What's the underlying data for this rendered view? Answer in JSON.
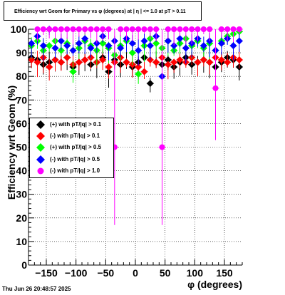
{
  "chart_data": {
    "type": "scatter",
    "title": "Efficiency wrt Geom for Primary vs φ (degrees) at | η | <= 1.0 at pT > 0.11",
    "xlabel": "φ (degrees)",
    "ylabel": "Efficiency wrt Geom (%)",
    "xlim": [
      -180,
      180
    ],
    "ylim": [
      0,
      100
    ],
    "x_ticks": [
      "−150",
      "−100",
      "−50",
      "0",
      "50",
      "100",
      "150"
    ],
    "x_tick_values": [
      -150,
      -100,
      -50,
      0,
      50,
      100,
      150
    ],
    "y_ticks": [
      "0",
      "10",
      "20",
      "30",
      "40",
      "50",
      "60",
      "70",
      "80",
      "90",
      "100"
    ],
    "y_tick_values": [
      0,
      10,
      20,
      30,
      40,
      50,
      60,
      70,
      80,
      90,
      100
    ],
    "grid": true,
    "legend_position": "middle-left",
    "series": [
      {
        "name": "(+) with pT/|q| > 0.1",
        "color": "#000000",
        "marker": "diamond",
        "x": [
          -175,
          -165,
          -155,
          -145,
          -135,
          -125,
          -115,
          -105,
          -95,
          -85,
          -75,
          -65,
          -55,
          -45,
          -35,
          -25,
          -15,
          -5,
          5,
          15,
          25,
          35,
          45,
          55,
          65,
          75,
          85,
          95,
          105,
          115,
          125,
          135,
          145,
          155,
          165,
          175
        ],
        "y": [
          88,
          87,
          85,
          86,
          87,
          86,
          88,
          84,
          86,
          87,
          85,
          86,
          88,
          82,
          87,
          85,
          86,
          84,
          86,
          88,
          77,
          86,
          85,
          87,
          84,
          86,
          88,
          85,
          86,
          87,
          86,
          84,
          86,
          88,
          87,
          84
        ]
      },
      {
        "name": "(-) with pT/|q| > 0.1",
        "color": "#ff0000",
        "marker": "diamond",
        "x": [
          -175,
          -165,
          -155,
          -145,
          -135,
          -125,
          -115,
          -105,
          -95,
          -85,
          -75,
          -65,
          -55,
          -45,
          -35,
          -25,
          -15,
          -5,
          5,
          15,
          25,
          35,
          45,
          55,
          65,
          75,
          85,
          95,
          105,
          115,
          125,
          135,
          145,
          155,
          165,
          175
        ],
        "y": [
          87,
          86,
          88,
          84,
          87,
          86,
          88,
          85,
          86,
          87,
          88,
          86,
          87,
          84,
          86,
          88,
          86,
          85,
          84,
          82,
          87,
          86,
          88,
          85,
          86,
          87,
          86,
          88,
          86,
          87,
          86,
          88,
          87,
          86,
          88,
          87
        ]
      },
      {
        "name": "(+) with pT/|q| > 0.5",
        "color": "#00ff00",
        "marker": "diamond",
        "x": [
          -175,
          -165,
          -155,
          -145,
          -135,
          -125,
          -115,
          -105,
          -95,
          -85,
          -75,
          -65,
          -55,
          -45,
          -35,
          -25,
          -15,
          -5,
          5,
          15,
          25,
          35,
          45,
          55,
          65,
          75,
          85,
          95,
          105,
          115,
          125,
          135,
          145,
          155,
          165,
          175
        ],
        "y": [
          93,
          95,
          91,
          93,
          95,
          91,
          94,
          82,
          92,
          95,
          93,
          91,
          94,
          92,
          89,
          93,
          95,
          90,
          81,
          93,
          96,
          94,
          92,
          95,
          91,
          94,
          96,
          93,
          95,
          92,
          94,
          91,
          95,
          97,
          98,
          99
        ]
      },
      {
        "name": "(-) with pT/|q| > 0.5",
        "color": "#0000ff",
        "marker": "diamond",
        "x": [
          -175,
          -165,
          -155,
          -145,
          -135,
          -125,
          -115,
          -105,
          -95,
          -85,
          -75,
          -65,
          -55,
          -45,
          -35,
          -25,
          -15,
          -5,
          5,
          15,
          25,
          35,
          45,
          55,
          65,
          75,
          85,
          95,
          105,
          115,
          125,
          135,
          145,
          155,
          165,
          175
        ],
        "y": [
          94,
          97,
          93,
          100,
          92,
          95,
          93,
          91,
          94,
          96,
          92,
          94,
          97,
          93,
          95,
          92,
          96,
          94,
          91,
          95,
          93,
          97,
          80,
          95,
          93,
          96,
          92,
          94,
          96,
          93,
          95,
          91,
          94,
          96,
          93,
          95
        ]
      },
      {
        "name": "(-) with pT/|q| > 1.0",
        "color": "#ff00ff",
        "marker": "circle",
        "x": [
          -165,
          -155,
          -145,
          -135,
          -125,
          -115,
          -105,
          -95,
          -85,
          -75,
          -65,
          -55,
          -45,
          -35,
          -25,
          -15,
          -5,
          5,
          15,
          25,
          35,
          45,
          55,
          65,
          75,
          85,
          95,
          105,
          115,
          125,
          135,
          145,
          155,
          165,
          175
        ],
        "y": [
          100,
          100,
          100,
          100,
          100,
          100,
          100,
          100,
          100,
          100,
          100,
          100,
          100,
          50,
          100,
          100,
          100,
          100,
          100,
          100,
          100,
          50,
          100,
          100,
          100,
          100,
          100,
          100,
          100,
          100,
          75,
          100,
          100,
          100,
          100
        ]
      }
    ]
  },
  "footer": {
    "timestamp": "Thu Jun 26 20:48:57 2025"
  }
}
